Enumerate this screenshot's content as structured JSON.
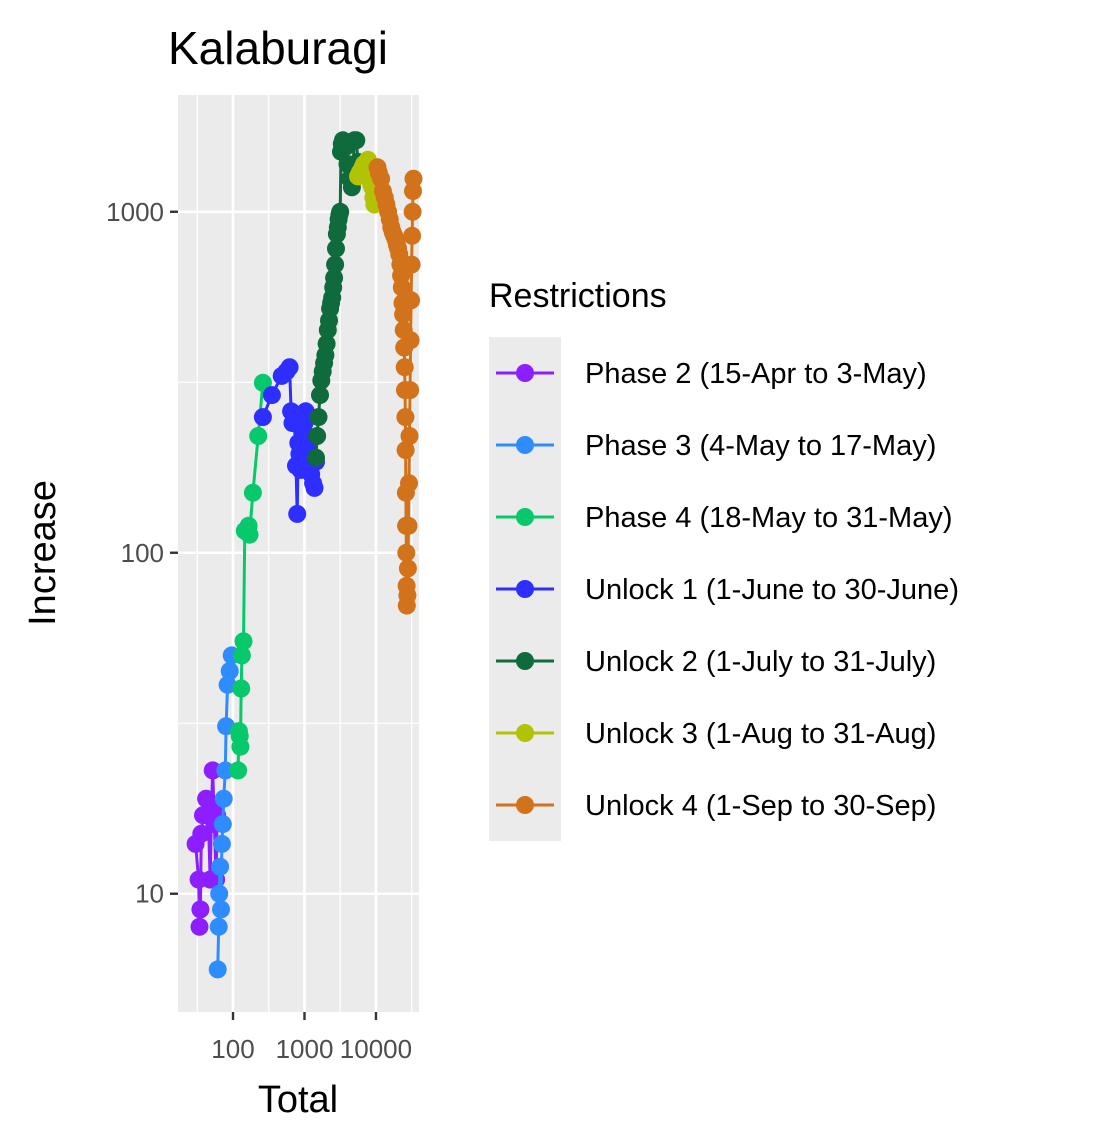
{
  "chart_data": {
    "type": "line",
    "title": "Kalaburagi",
    "xlabel": "Total",
    "ylabel": "Increase",
    "x_scale": "log10",
    "y_scale": "log10",
    "xlim": [
      17,
      40000
    ],
    "ylim": [
      4.5,
      2200
    ],
    "x_ticks": [
      {
        "value": 100,
        "label": "100"
      },
      {
        "value": 1000,
        "label": "1000"
      },
      {
        "value": 10000,
        "label": "10000"
      }
    ],
    "y_ticks": [
      {
        "value": 10,
        "label": "10"
      },
      {
        "value": 100,
        "label": "100"
      },
      {
        "value": 1000,
        "label": "1000"
      }
    ],
    "grid": true,
    "legend": {
      "title": "Restrictions",
      "position": "right"
    },
    "series": [
      {
        "name": "Phase 2 (15-Apr to 3-May)",
        "color": "#8c1eff",
        "points": [
          [
            30,
            14
          ],
          [
            33,
            11
          ],
          [
            34,
            8
          ],
          [
            35,
            9
          ],
          [
            36,
            15
          ],
          [
            38,
            17
          ],
          [
            42,
            19
          ],
          [
            45,
            17
          ],
          [
            48,
            11
          ],
          [
            50,
            18
          ],
          [
            52,
            23
          ],
          [
            55,
            16
          ],
          [
            58,
            11
          ],
          [
            60,
            17
          ]
        ]
      },
      {
        "name": "Phase 3 (4-May to 17-May)",
        "color": "#2f8cff",
        "points": [
          [
            61,
            6
          ],
          [
            63,
            8
          ],
          [
            64,
            10
          ],
          [
            66,
            12
          ],
          [
            68,
            9
          ],
          [
            70,
            14
          ],
          [
            72,
            16
          ],
          [
            74,
            19
          ],
          [
            78,
            23
          ],
          [
            80,
            31
          ],
          [
            84,
            41
          ],
          [
            90,
            45
          ],
          [
            96,
            50
          ]
        ]
      },
      {
        "name": "Phase 4 (18-May to 31-May)",
        "color": "#07c86a",
        "points": [
          [
            118,
            23
          ],
          [
            121,
            30
          ],
          [
            124,
            29
          ],
          [
            127,
            27
          ],
          [
            130,
            40
          ],
          [
            133,
            50
          ],
          [
            140,
            55
          ],
          [
            146,
            116
          ],
          [
            165,
            120
          ],
          [
            170,
            113
          ],
          [
            190,
            150
          ],
          [
            225,
            220
          ],
          [
            262,
            315
          ]
        ]
      },
      {
        "name": "Unlock 1 (1-June to 30-June)",
        "color": "#2d2eff",
        "points": [
          [
            262,
            250
          ],
          [
            350,
            290
          ],
          [
            480,
            330
          ],
          [
            560,
            340
          ],
          [
            620,
            350
          ],
          [
            650,
            260
          ],
          [
            680,
            240
          ],
          [
            720,
            250
          ],
          [
            760,
            180
          ],
          [
            790,
            130
          ],
          [
            820,
            210
          ],
          [
            850,
            195
          ],
          [
            880,
            175
          ],
          [
            920,
            180
          ],
          [
            960,
            220
          ],
          [
            1000,
            240
          ],
          [
            1040,
            260
          ],
          [
            1080,
            220
          ],
          [
            1120,
            200
          ],
          [
            1160,
            180
          ],
          [
            1200,
            180
          ],
          [
            1240,
            170
          ],
          [
            1280,
            190
          ],
          [
            1320,
            160
          ],
          [
            1380,
            155
          ],
          [
            1450,
            185
          ]
        ]
      },
      {
        "name": "Unlock 2 (1-July to 31-July)",
        "color": "#0f6a3c",
        "points": [
          [
            1450,
            190
          ],
          [
            1500,
            220
          ],
          [
            1570,
            250
          ],
          [
            1650,
            290
          ],
          [
            1720,
            320
          ],
          [
            1800,
            340
          ],
          [
            1880,
            360
          ],
          [
            1960,
            380
          ],
          [
            2040,
            410
          ],
          [
            2120,
            450
          ],
          [
            2200,
            480
          ],
          [
            2280,
            520
          ],
          [
            2360,
            540
          ],
          [
            2440,
            560
          ],
          [
            2520,
            600
          ],
          [
            2600,
            640
          ],
          [
            2680,
            700
          ],
          [
            2760,
            780
          ],
          [
            2840,
            860
          ],
          [
            2920,
            900
          ],
          [
            3000,
            950
          ],
          [
            3080,
            980
          ],
          [
            3160,
            1000
          ],
          [
            3240,
            1500
          ],
          [
            3330,
            1580
          ],
          [
            3450,
            1620
          ],
          [
            3600,
            1600
          ],
          [
            3750,
            1550
          ],
          [
            4000,
            1380
          ],
          [
            4300,
            1250
          ],
          [
            4600,
            1180
          ],
          [
            5000,
            1620
          ],
          [
            5300,
            1620
          ],
          [
            5600,
            1400
          ]
        ]
      },
      {
        "name": "Unlock 3 (1-Aug to 31-Aug)",
        "color": "#b2c305",
        "points": [
          [
            5600,
            1270
          ],
          [
            5900,
            1300
          ],
          [
            6200,
            1320
          ],
          [
            6500,
            1350
          ],
          [
            6800,
            1380
          ],
          [
            7100,
            1370
          ],
          [
            7400,
            1400
          ],
          [
            7700,
            1420
          ],
          [
            8000,
            1300
          ],
          [
            8300,
            1250
          ],
          [
            8600,
            1200
          ],
          [
            8900,
            1180
          ],
          [
            9200,
            1100
          ],
          [
            9500,
            1050
          ],
          [
            9800,
            1080
          ],
          [
            10100,
            1150
          ],
          [
            10500,
            1200
          ]
        ]
      },
      {
        "name": "Unlock 4 (1-Sep to 30-Sep)",
        "color": "#d2721a",
        "points": [
          [
            10500,
            1350
          ],
          [
            11000,
            1300
          ],
          [
            11800,
            1250
          ],
          [
            12500,
            1150
          ],
          [
            13300,
            1100
          ],
          [
            14000,
            1050
          ],
          [
            14800,
            1000
          ],
          [
            15600,
            950
          ],
          [
            16400,
            900
          ],
          [
            17200,
            870
          ],
          [
            18000,
            850
          ],
          [
            18800,
            830
          ],
          [
            19600,
            800
          ],
          [
            20400,
            780
          ],
          [
            21200,
            750
          ],
          [
            22000,
            700
          ],
          [
            22500,
            650
          ],
          [
            23000,
            600
          ],
          [
            23500,
            540
          ],
          [
            24000,
            500
          ],
          [
            24400,
            450
          ],
          [
            24800,
            400
          ],
          [
            25200,
            350
          ],
          [
            25500,
            300
          ],
          [
            25800,
            250
          ],
          [
            26000,
            200
          ],
          [
            26200,
            150
          ],
          [
            26400,
            120
          ],
          [
            26600,
            100
          ],
          [
            26800,
            80
          ],
          [
            27000,
            70
          ],
          [
            27500,
            75
          ],
          [
            28000,
            90
          ],
          [
            28500,
            120
          ],
          [
            29000,
            160
          ],
          [
            29500,
            220
          ],
          [
            30000,
            300
          ],
          [
            30500,
            420
          ],
          [
            31000,
            550
          ],
          [
            31500,
            700
          ],
          [
            32000,
            850
          ],
          [
            32500,
            1000
          ],
          [
            33000,
            1150
          ],
          [
            33500,
            1250
          ]
        ]
      }
    ]
  }
}
